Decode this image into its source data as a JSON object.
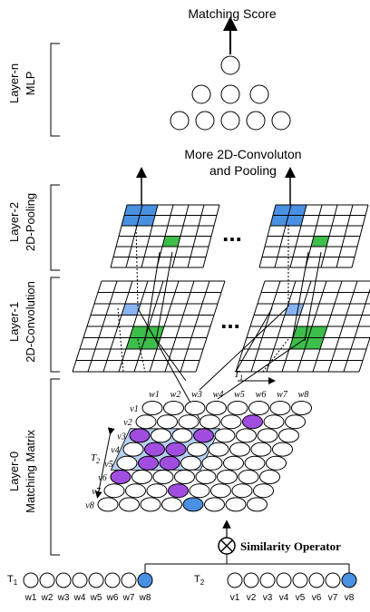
{
  "top": {
    "matching_score": "Matching Score",
    "more_conv_line1": "More 2D-Convoluton",
    "more_conv_line2": "and Pooling",
    "ellipsis": "..."
  },
  "layers": [
    {
      "name": "Layer-n",
      "sub": "MLP"
    },
    {
      "name": "Layer-2",
      "sub": "2D-Pooling"
    },
    {
      "name": "Layer-1",
      "sub": "2D-Convolution"
    },
    {
      "name": "Layer-0",
      "sub": "Matching Matrix"
    }
  ],
  "matrix": {
    "t1_label": "T",
    "t1_sub": "1",
    "t2_label": "T",
    "t2_sub": "2",
    "w_labels": [
      "w1",
      "w2",
      "w3",
      "w4",
      "w5",
      "w6",
      "w7",
      "w8"
    ],
    "v_labels": [
      "v1",
      "v2",
      "v3",
      "v4",
      "v5",
      "v6",
      "v7",
      "v8"
    ]
  },
  "bottom": {
    "operator": "Similarity Operator",
    "t1_label": "T",
    "t1_sub": "1",
    "t2_label": "T",
    "t2_sub": "2",
    "w_labels": [
      "w1",
      "w2",
      "w3",
      "w4",
      "w5",
      "w6",
      "w7",
      "w8"
    ],
    "v_labels": [
      "v1",
      "v2",
      "v3",
      "v4",
      "v5",
      "v6",
      "v7",
      "v8"
    ]
  },
  "colors": {
    "blue": "#4a90e2",
    "light_blue": "#8ab4f0",
    "green": "#3dbd4a",
    "purple": "#a04de0",
    "light_purple_bg": "#b8d0f0",
    "stroke": "#000000"
  }
}
